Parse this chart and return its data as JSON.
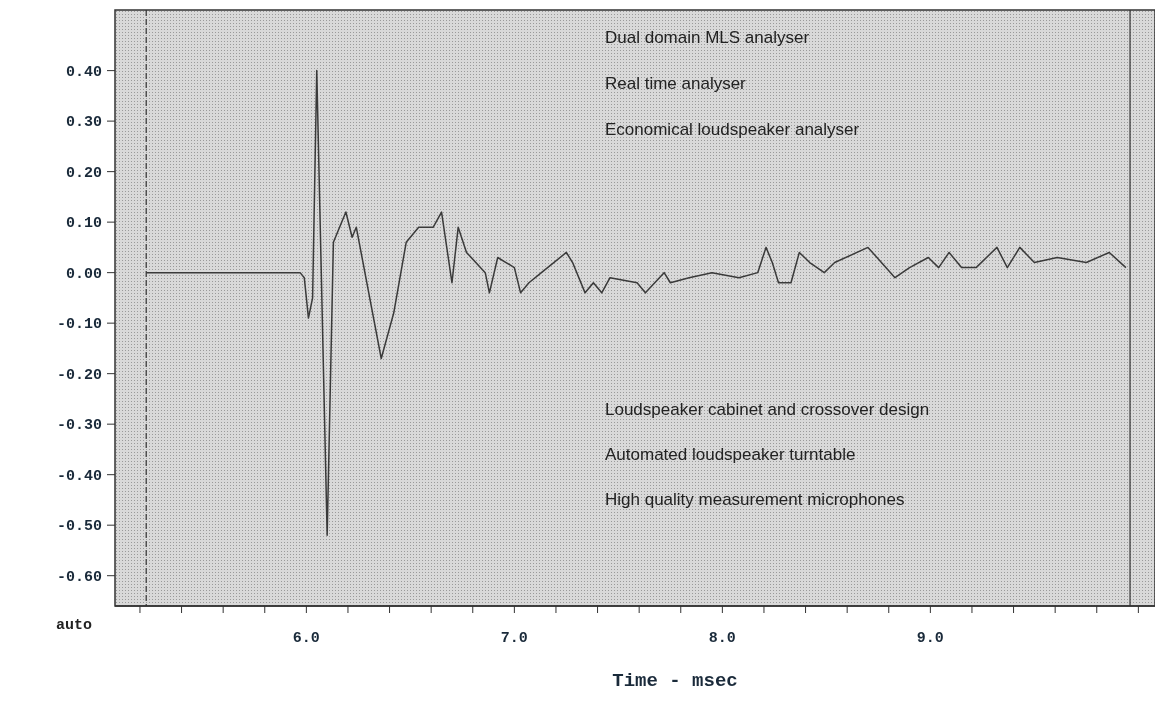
{
  "chart_data": {
    "type": "line",
    "xlabel": "Time - msec",
    "x": [
      5.23,
      5.97,
      5.99,
      6.01,
      6.03,
      6.05,
      6.1,
      6.13,
      6.19,
      6.22,
      6.24,
      6.36,
      6.42,
      6.48,
      6.54,
      6.61,
      6.65,
      6.7,
      6.73,
      6.77,
      6.86,
      6.88,
      6.92,
      6.96,
      7.0,
      7.03,
      7.07,
      7.13,
      7.25,
      7.28,
      7.34,
      7.38,
      7.42,
      7.46,
      7.59,
      7.63,
      7.72,
      7.75,
      7.84,
      7.95,
      8.08,
      8.17,
      8.21,
      8.24,
      8.27,
      8.33,
      8.37,
      8.42,
      8.49,
      8.54,
      8.7,
      8.83,
      8.9,
      8.99,
      9.04,
      9.09,
      9.15,
      9.22,
      9.32,
      9.37,
      9.43,
      9.5,
      9.61,
      9.75,
      9.86,
      9.94
    ],
    "series": [
      {
        "color": "#3a3a3a",
        "values": [
          0,
          0,
          -0.01,
          -0.09,
          -0.05,
          0.4,
          -0.52,
          0.06,
          0.12,
          0.07,
          0.09,
          -0.17,
          -0.08,
          0.06,
          0.09,
          0.09,
          0.12,
          -0.02,
          0.09,
          0.04,
          0,
          -0.04,
          0.03,
          0.02,
          0.01,
          -0.04,
          -0.02,
          0,
          0.04,
          0.02,
          -0.04,
          -0.02,
          -0.04,
          -0.01,
          -0.02,
          -0.04,
          0,
          -0.02,
          -0.01,
          0,
          -0.01,
          0,
          0.05,
          0.02,
          -0.02,
          -0.02,
          0.04,
          0.02,
          0,
          0.02,
          0.05,
          -0.01,
          0.01,
          0.03,
          0.01,
          0.04,
          0.01,
          0.01,
          0.05,
          0.01,
          0.05,
          0.02,
          0.03,
          0.02,
          0.04,
          0.01
        ]
      }
    ],
    "xlim": [
      5.08,
      10.08
    ],
    "ylim": [
      -0.66,
      0.52
    ],
    "xticks": [
      {
        "value": 5.2,
        "label": null
      },
      {
        "value": 5.4,
        "label": null
      },
      {
        "value": 5.6,
        "label": null
      },
      {
        "value": 5.8,
        "label": null
      },
      {
        "value": 6,
        "label": "6.0"
      },
      {
        "value": 6.2,
        "label": null
      },
      {
        "value": 6.4,
        "label": null
      },
      {
        "value": 6.6,
        "label": null
      },
      {
        "value": 6.8,
        "label": null
      },
      {
        "value": 7,
        "label": "7.0"
      },
      {
        "value": 7.2,
        "label": null
      },
      {
        "value": 7.4,
        "label": null
      },
      {
        "value": 7.6,
        "label": null
      },
      {
        "value": 7.8,
        "label": null
      },
      {
        "value": 8,
        "label": "8.0"
      },
      {
        "value": 8.2,
        "label": null
      },
      {
        "value": 8.4,
        "label": null
      },
      {
        "value": 8.6,
        "label": null
      },
      {
        "value": 8.8,
        "label": null
      },
      {
        "value": 9,
        "label": "9.0"
      },
      {
        "value": 9.2,
        "label": null
      },
      {
        "value": 9.4,
        "label": null
      },
      {
        "value": 9.6,
        "label": null
      },
      {
        "value": 9.8,
        "label": null
      },
      {
        "value": 10,
        "label": null
      }
    ],
    "yticks": [
      {
        "value": 0.4,
        "label": "0.40"
      },
      {
        "value": 0.3,
        "label": "0.30"
      },
      {
        "value": 0.2,
        "label": "0.20"
      },
      {
        "value": 0.1,
        "label": "0.10"
      },
      {
        "value": 0,
        "label": "0.00"
      },
      {
        "value": -0.1,
        "label": "-0.10"
      },
      {
        "value": -0.2,
        "label": "-0.20"
      },
      {
        "value": -0.3,
        "label": "-0.30"
      },
      {
        "value": -0.4,
        "label": "-0.40"
      },
      {
        "value": -0.5,
        "label": "-0.50"
      },
      {
        "value": -0.6,
        "label": "-0.60"
      }
    ],
    "ref_lines": [
      {
        "axis": "x",
        "value": 5.23,
        "line_style": "dashed",
        "color": "#333333"
      },
      {
        "axis": "x",
        "value": 9.96,
        "line_style": "solid",
        "color": "#333333"
      }
    ],
    "annotations": [
      "Dual domain MLS analyser",
      "Real time analyser",
      "Economical loudspeaker analyser",
      "Loudspeaker cabinet and crossover design",
      "Automated loudspeaker turntable",
      "High quality measurement microphones",
      "auto"
    ],
    "grid": false,
    "marker": "none",
    "line_style": "solid"
  }
}
